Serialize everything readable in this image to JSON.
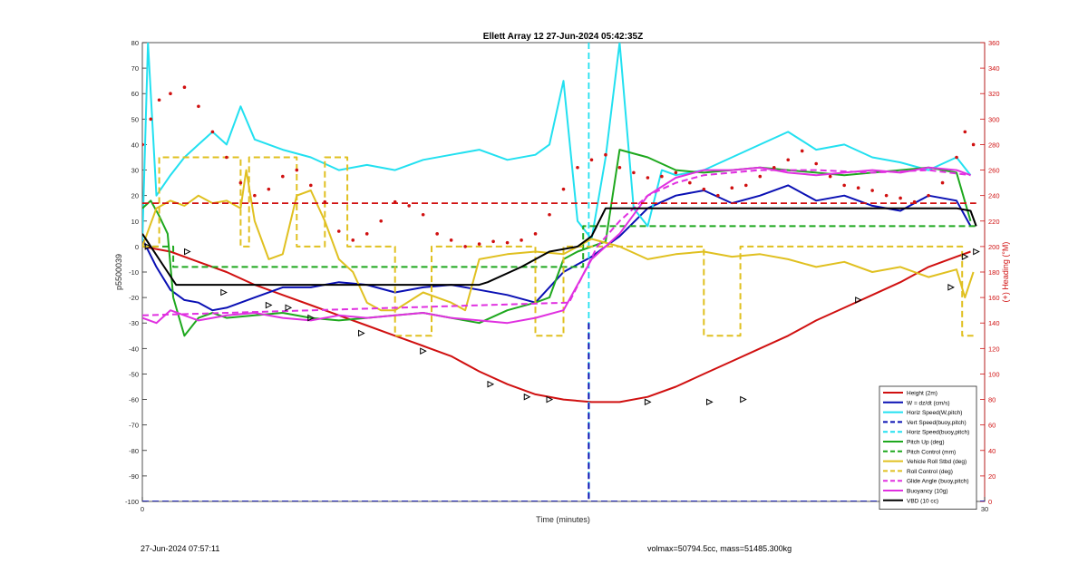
{
  "chart_data": {
    "type": "line",
    "title": "Ellett Array 12 27-Jun-2024 05:42:35Z",
    "xlabel": "Time (minutes)",
    "ylabel": "p5500039",
    "y2label": "(+) Heading (°M)",
    "xlim": [
      0,
      30
    ],
    "ylim": [
      -100,
      80
    ],
    "y2lim": [
      0,
      360
    ],
    "x_ticks": [
      0,
      30
    ],
    "y_ticks": [
      -100,
      -90,
      -80,
      -70,
      -60,
      -50,
      -40,
      -30,
      -20,
      -10,
      0,
      10,
      20,
      30,
      40,
      50,
      60,
      70,
      80
    ],
    "y2_ticks": [
      0,
      20,
      40,
      60,
      80,
      100,
      120,
      140,
      160,
      180,
      200,
      220,
      240,
      260,
      280,
      300,
      320,
      340,
      360
    ],
    "grid": false,
    "legend_position": "bottom-right",
    "series": [
      {
        "name": "Height (2m)",
        "color": "#d01010",
        "style": "solid",
        "x": [
          0,
          1,
          2,
          3,
          4,
          5,
          6,
          7,
          8,
          9,
          10,
          11,
          12,
          13,
          14,
          15,
          16,
          17,
          18,
          19,
          20,
          21,
          22,
          23,
          24,
          25,
          26,
          27,
          28,
          29,
          29.5
        ],
        "y": [
          0,
          -2,
          -6,
          -10,
          -15,
          -19,
          -23,
          -27,
          -31,
          -35,
          -39,
          -43,
          -49,
          -54,
          -58,
          -60,
          -61,
          -61,
          -59,
          -55,
          -50,
          -45,
          -40,
          -35,
          -29,
          -24,
          -19,
          -14,
          -8,
          -4,
          -2
        ]
      },
      {
        "name": "W = dz/dt (cm/s)",
        "color": "#0a10b4",
        "style": "solid",
        "x": [
          0,
          0.5,
          1,
          1.5,
          2,
          2.5,
          3,
          4,
          5,
          6,
          7,
          8,
          9,
          10,
          11,
          12,
          13,
          14,
          15,
          16,
          17,
          18,
          19,
          20,
          21,
          22,
          23,
          24,
          25,
          26,
          27,
          28,
          29,
          29.5
        ],
        "y": [
          3,
          -8,
          -17,
          -21,
          -22,
          -25,
          -24,
          -20,
          -16,
          -16,
          -14,
          -15,
          -18,
          -16,
          -15,
          -17,
          -19,
          -22,
          -10,
          -4,
          4,
          15,
          20,
          22,
          17,
          20,
          24,
          18,
          20,
          16,
          14,
          20,
          18,
          8
        ]
      },
      {
        "name": "Horiz Speed(W,pitch)",
        "color": "#22e0f0",
        "style": "solid",
        "x": [
          0,
          0.2,
          0.5,
          1,
          1.5,
          2,
          2.5,
          3,
          3.5,
          4,
          5,
          6,
          7,
          8,
          9,
          10,
          11,
          12,
          13,
          14,
          14.5,
          15,
          15.5,
          16,
          16.5,
          17,
          17.5,
          18,
          18.5,
          19,
          20,
          21,
          22,
          23,
          24,
          25,
          26,
          27,
          28,
          29,
          29.5
        ],
        "y": [
          2,
          80,
          20,
          28,
          35,
          40,
          45,
          40,
          55,
          42,
          38,
          35,
          30,
          32,
          30,
          34,
          36,
          38,
          34,
          36,
          40,
          65,
          10,
          3,
          35,
          80,
          15,
          8,
          30,
          28,
          30,
          35,
          40,
          45,
          38,
          40,
          35,
          33,
          30,
          35,
          28
        ]
      },
      {
        "name": "Vert Speed(buoy,pitch)",
        "color": "#0a10b4",
        "style": "dashed",
        "x": [
          0,
          15.9,
          15.9,
          30
        ],
        "y": [
          -100,
          -100,
          -100,
          -100
        ]
      },
      {
        "name": "Horiz Speed(buoy,pitch)",
        "color": "#22e0f0",
        "style": "dashed",
        "x": [
          15.9,
          15.9
        ],
        "y": [
          80,
          -100
        ]
      },
      {
        "name": "Pitch Up (deg)",
        "color": "#1ea81e",
        "style": "solid",
        "x": [
          0,
          0.3,
          0.6,
          0.9,
          1.1,
          1.5,
          2,
          2.5,
          3,
          4,
          5,
          6,
          7,
          8,
          9,
          10,
          11,
          12,
          13,
          14,
          14.5,
          15,
          15.5,
          16,
          16.5,
          17,
          18,
          19,
          20,
          21,
          22,
          23,
          24,
          25,
          26,
          27,
          28,
          29,
          29.5
        ],
        "y": [
          15,
          18,
          12,
          5,
          -20,
          -35,
          -28,
          -26,
          -28,
          -27,
          -26,
          -28,
          -29,
          -28,
          -27,
          -26,
          -28,
          -30,
          -25,
          -22,
          -20,
          -5,
          -2,
          0,
          2,
          38,
          35,
          30,
          29,
          30,
          31,
          30,
          29,
          28,
          29,
          30,
          31,
          29,
          10
        ]
      },
      {
        "name": "Pitch Control (mm)",
        "color": "#1ea81e",
        "style": "dashed",
        "x": [
          0,
          1.1,
          1.1,
          11.7,
          11.7,
          15.7,
          15.7,
          24.5,
          24.5,
          29.7
        ],
        "y": [
          0,
          0,
          -8,
          -8,
          -8,
          -8,
          8,
          8,
          8,
          8
        ]
      },
      {
        "name": "Vehicle Roll Stbd (deg)",
        "color": "#e0c020",
        "style": "solid",
        "x": [
          0,
          0.5,
          1,
          1.5,
          2,
          2.5,
          3,
          3.5,
          3.7,
          4,
          4.5,
          5,
          5.5,
          6,
          6.5,
          7,
          7.5,
          8,
          8.5,
          9,
          10,
          11,
          11.5,
          12,
          13,
          14,
          15,
          16,
          17,
          18,
          19,
          20,
          21,
          22,
          23,
          24,
          25,
          26,
          27,
          28,
          29,
          29.3,
          29.6
        ],
        "y": [
          0,
          15,
          18,
          16,
          20,
          17,
          18,
          15,
          30,
          10,
          -5,
          -3,
          20,
          22,
          10,
          -5,
          -10,
          -22,
          -25,
          -25,
          -18,
          -22,
          -25,
          -5,
          -3,
          -2,
          -3,
          3,
          0,
          -5,
          -3,
          -2,
          -4,
          -3,
          -5,
          -8,
          -6,
          -10,
          -8,
          -12,
          -9,
          -20,
          -10
        ]
      },
      {
        "name": "Roll Control (deg)",
        "color": "#e0c020",
        "style": "dashed",
        "x": [
          0,
          0.6,
          0.6,
          3.5,
          3.5,
          3.8,
          3.8,
          5.5,
          5.5,
          6.5,
          6.5,
          7.3,
          7.3,
          8.5,
          8.5,
          9.0,
          9.0,
          10.3,
          10.3,
          12.0,
          12.0,
          14.0,
          14.0,
          15.0,
          15.0,
          20.0,
          20.0,
          21.3,
          21.3,
          22.0,
          22.0,
          29.2,
          29.2,
          29.6
        ],
        "y": [
          0,
          0,
          35,
          35,
          0,
          0,
          35,
          35,
          0,
          0,
          35,
          35,
          0,
          0,
          0,
          0,
          -35,
          -35,
          0,
          0,
          0,
          0,
          -35,
          -35,
          0,
          0,
          -35,
          -35,
          0,
          0,
          0,
          0,
          -35,
          -35
        ]
      },
      {
        "name": "Glide Angle (buoy,pitch)",
        "color": "#e030e0",
        "style": "dashed",
        "x": [
          0,
          15.2,
          16.2,
          17,
          18,
          19,
          20,
          22,
          24,
          26,
          28,
          29.5
        ],
        "y": [
          -27,
          -22,
          0,
          10,
          20,
          25,
          28,
          30,
          30,
          29,
          30,
          28
        ]
      },
      {
        "name": "Buoyancy (10g)",
        "color": "#e030e0",
        "style": "solid",
        "x": [
          0,
          0.5,
          1,
          1.5,
          2,
          2.5,
          3,
          4,
          5,
          6,
          7,
          8,
          9,
          10,
          11,
          12,
          13,
          14,
          15,
          16,
          17,
          18,
          19,
          20,
          21,
          22,
          23,
          24,
          25,
          26,
          27,
          28,
          29,
          29.5
        ],
        "y": [
          -28,
          -30,
          -25,
          -27,
          -29,
          -28,
          -27,
          -26,
          -28,
          -29,
          -27,
          -28,
          -27,
          -26,
          -28,
          -29,
          -30,
          -28,
          -25,
          -5,
          5,
          20,
          27,
          30,
          30,
          31,
          29,
          28,
          29,
          30,
          29,
          31,
          30,
          28
        ]
      },
      {
        "name": "VBD (10 cc)",
        "color": "#000000",
        "style": "solid",
        "x": [
          0,
          0.3,
          0.9,
          1.2,
          12.0,
          12.3,
          13.5,
          14.5,
          15.5,
          16.0,
          16.5,
          20.0,
          24.5,
          29.0,
          29.5,
          29.7
        ],
        "y": [
          5,
          0,
          -10,
          -15,
          -15,
          -14,
          -8,
          -2,
          0,
          4,
          15,
          15,
          15,
          15,
          14,
          8
        ]
      }
    ],
    "heading_series": {
      "name": "(+) Heading (°M)",
      "color": "#d01010",
      "style": "dotted",
      "axis": "right",
      "x": [
        0,
        0.3,
        0.6,
        1,
        1.5,
        2,
        2.5,
        3,
        3.5,
        4,
        4.5,
        5,
        5.5,
        6,
        6.5,
        7,
        7.5,
        8,
        8.5,
        9,
        9.5,
        10,
        10.5,
        11,
        11.5,
        12,
        12.5,
        13,
        13.5,
        14,
        14.5,
        15,
        15.5,
        16,
        16.5,
        17,
        17.5,
        18,
        18.5,
        19,
        19.5,
        20,
        20.5,
        21,
        21.5,
        22,
        22.5,
        23,
        23.5,
        24,
        24.5,
        25,
        25.5,
        26,
        26.5,
        27,
        27.5,
        28,
        28.5,
        29,
        29.3,
        29.6
      ],
      "y": [
        280,
        300,
        315,
        320,
        325,
        310,
        290,
        270,
        250,
        240,
        245,
        255,
        260,
        248,
        235,
        212,
        205,
        210,
        220,
        235,
        232,
        225,
        210,
        205,
        200,
        202,
        204,
        203,
        205,
        210,
        225,
        245,
        262,
        268,
        272,
        262,
        258,
        254,
        255,
        258,
        250,
        245,
        240,
        246,
        248,
        255,
        262,
        268,
        275,
        265,
        255,
        248,
        246,
        244,
        240,
        238,
        235,
        240,
        250,
        270,
        290,
        280
      ]
    },
    "markers": {
      "style": "triangle",
      "color": "#000000",
      "x": [
        0.2,
        1.6,
        2.9,
        4.5,
        5.2,
        6.0,
        7.8,
        10.0,
        12.4,
        13.7,
        14.5,
        18.0,
        20.2,
        21.4,
        25.5,
        28.8,
        29.3,
        29.7
      ],
      "y": [
        0,
        -2,
        -18,
        -23,
        -24,
        -28,
        -34,
        -41,
        -54,
        -59,
        -60,
        -61,
        -61,
        -60,
        -21,
        -16,
        -4,
        -2
      ]
    },
    "legend_entries": [
      "Height (2m)",
      "W = dz/dt (cm/s)",
      "Horiz Speed(W,pitch)",
      "Vert Speed(buoy,pitch)",
      "Horiz Speed(buoy,pitch)",
      "Pitch Up (deg)",
      "Pitch Control (mm)",
      "Vehicle Roll Stbd (deg)",
      "Roll Control (deg)",
      "Glide Angle (buoy,pitch)",
      "Buoyancy (10g)",
      "VBD (10 cc)"
    ]
  },
  "footer": {
    "left": "27-Jun-2024 07:57:11",
    "right": "volmax=50794.5cc, mass=51485.300kg"
  }
}
